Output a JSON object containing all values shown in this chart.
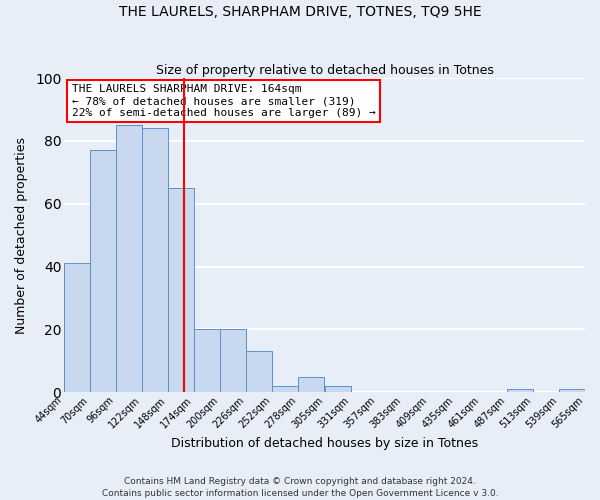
{
  "title": "THE LAURELS, SHARPHAM DRIVE, TOTNES, TQ9 5HE",
  "subtitle": "Size of property relative to detached houses in Totnes",
  "xlabel": "Distribution of detached houses by size in Totnes",
  "ylabel": "Number of detached properties",
  "bin_edges": [
    44,
    70,
    96,
    122,
    148,
    174,
    200,
    226,
    252,
    278,
    305,
    331,
    357,
    383,
    409,
    435,
    461,
    487,
    513,
    539,
    565
  ],
  "bar_heights": [
    41,
    77,
    85,
    84,
    65,
    20,
    20,
    13,
    2,
    5,
    2,
    0,
    0,
    0,
    0,
    0,
    0,
    1,
    0,
    1
  ],
  "bar_color": "#c8d8ee",
  "bar_edge_color": "#6090c8",
  "reference_line_x": 164,
  "reference_line_color": "red",
  "annotation_text": "THE LAURELS SHARPHAM DRIVE: 164sqm\n← 78% of detached houses are smaller (319)\n22% of semi-detached houses are larger (89) →",
  "annotation_box_color": "white",
  "annotation_box_edge_color": "red",
  "ylim": [
    0,
    100
  ],
  "yticks": [
    0,
    20,
    40,
    60,
    80,
    100
  ],
  "tick_labels": [
    "44sqm",
    "70sqm",
    "96sqm",
    "122sqm",
    "148sqm",
    "174sqm",
    "200sqm",
    "226sqm",
    "252sqm",
    "278sqm",
    "305sqm",
    "331sqm",
    "357sqm",
    "383sqm",
    "409sqm",
    "435sqm",
    "461sqm",
    "487sqm",
    "513sqm",
    "539sqm",
    "565sqm"
  ],
  "footer_text": "Contains HM Land Registry data © Crown copyright and database right 2024.\nContains public sector information licensed under the Open Government Licence v 3.0.",
  "fig_background_color": "#e8eef8",
  "plot_background_color": "#e8eef8",
  "grid_color": "white",
  "title_fontsize": 10,
  "subtitle_fontsize": 9,
  "label_fontsize": 9,
  "tick_fontsize": 7,
  "annotation_fontsize": 8,
  "footer_fontsize": 6.5
}
